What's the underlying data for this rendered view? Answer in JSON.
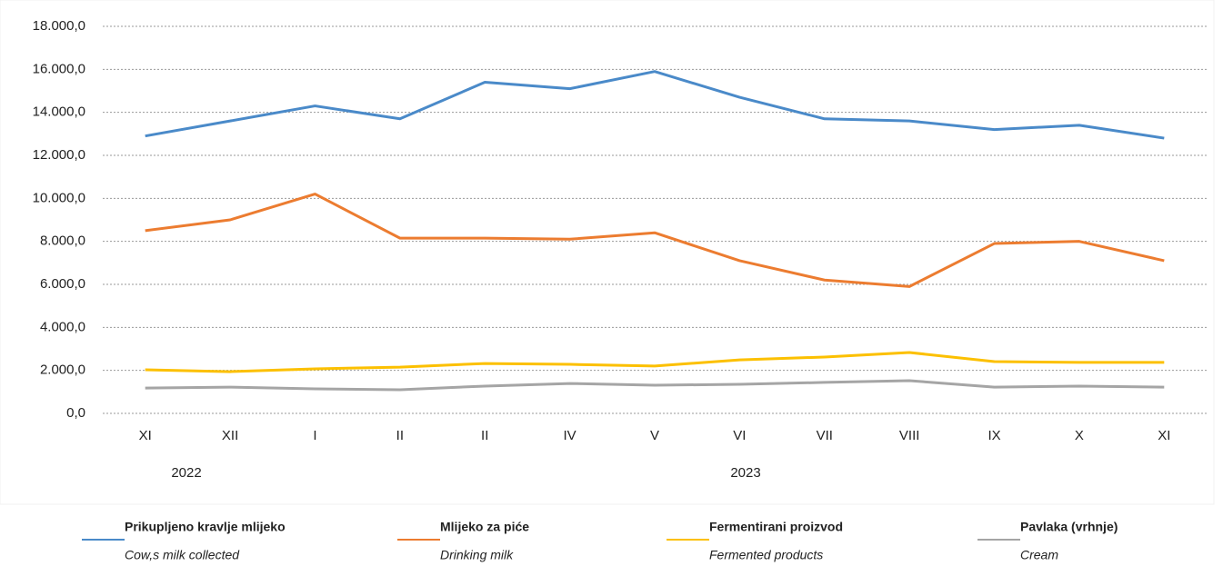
{
  "chart_data": {
    "type": "line",
    "categories": [
      "XI",
      "XII",
      "I",
      "II",
      "II",
      "IV",
      "V",
      "VI",
      "VII",
      "VIII",
      "IX",
      "X",
      "XI"
    ],
    "year_labels": [
      "2022",
      "2023"
    ],
    "ylim": [
      0,
      18000
    ],
    "yticks": [
      {
        "value": 0,
        "label": "0,0"
      },
      {
        "value": 2000,
        "label": "2.000,0"
      },
      {
        "value": 4000,
        "label": "4.000,0"
      },
      {
        "value": 6000,
        "label": "6.000,0"
      },
      {
        "value": 8000,
        "label": "8.000,0"
      },
      {
        "value": 10000,
        "label": "10.000,0"
      },
      {
        "value": 12000,
        "label": "12.000,0"
      },
      {
        "value": 14000,
        "label": "14.000,0"
      },
      {
        "value": 16000,
        "label": "16.000,0"
      },
      {
        "value": 18000,
        "label": "18.000,0"
      }
    ],
    "grid": true,
    "legend": "bottom",
    "series": [
      {
        "name": "Prikupljeno kravlje mlijeko",
        "name_en": "Cow,s milk collected",
        "color": "#4a8ac9",
        "values": [
          12900,
          13600,
          14300,
          13700,
          15400,
          15100,
          15900,
          14700,
          13700,
          13600,
          13200,
          13400,
          12800
        ]
      },
      {
        "name": "Mlijeko za piće",
        "name_en": "Drinking milk",
        "color": "#ec7c30",
        "values": [
          8500,
          9000,
          10200,
          8150,
          8150,
          8100,
          8400,
          7100,
          6200,
          5900,
          7900,
          8000,
          7100
        ]
      },
      {
        "name": "Fermentirani proizvod",
        "name_en": "Fermented products",
        "color": "#fcc000",
        "values": [
          2030,
          1940,
          2070,
          2150,
          2320,
          2280,
          2200,
          2490,
          2620,
          2830,
          2410,
          2370,
          2370
        ]
      },
      {
        "name": "Pavlaka (vrhnje)",
        "name_en": "Cream",
        "color": "#a5a5a5",
        "values": [
          1180,
          1220,
          1140,
          1100,
          1270,
          1390,
          1310,
          1350,
          1440,
          1520,
          1220,
          1270,
          1220
        ]
      }
    ]
  }
}
